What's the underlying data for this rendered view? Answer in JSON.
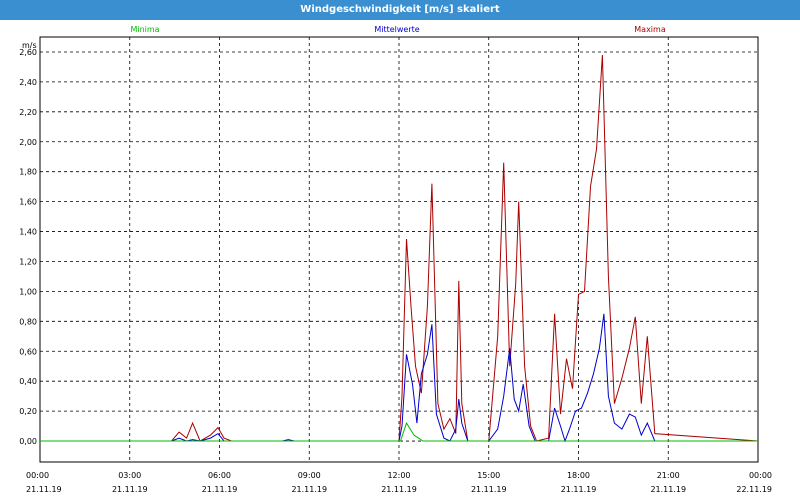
{
  "window": {
    "title": "Windgeschwindigkeit [m/s] skaliert"
  },
  "chart_data": {
    "type": "line",
    "title": "Windgeschwindigkeit [m/s] skaliert",
    "ylabel": "m/s",
    "xlabel": "",
    "ylim": [
      -0.14,
      2.7
    ],
    "xlim": [
      0,
      24
    ],
    "grid": true,
    "legend_placement": "top",
    "yticks": [
      "0,00",
      "0,20",
      "0,40",
      "0,60",
      "0,80",
      "1,00",
      "1,20",
      "1,40",
      "1,60",
      "1,80",
      "2,00",
      "2,20",
      "2,40",
      "2,60"
    ],
    "xticks": [
      {
        "time": "00:00",
        "date": "21.11.19"
      },
      {
        "time": "03:00",
        "date": "21.11.19"
      },
      {
        "time": "06:00",
        "date": "21.11.19"
      },
      {
        "time": "09:00",
        "date": "21.11.19"
      },
      {
        "time": "12:00",
        "date": "21.11.19"
      },
      {
        "time": "15:00",
        "date": "21.11.19"
      },
      {
        "time": "18:00",
        "date": "21.11.19"
      },
      {
        "time": "21:00",
        "date": "21.11.19"
      },
      {
        "time": "00:00",
        "date": "22.11.19"
      }
    ],
    "series": [
      {
        "name": "Minima",
        "color": "#00bb00",
        "x": [
          0,
          12.05,
          12.25,
          12.5,
          12.8,
          13.0,
          24
        ],
        "y": [
          0,
          0,
          0.12,
          0.04,
          0,
          0,
          0
        ]
      },
      {
        "name": "Mittelwerte",
        "color": "#0000cc",
        "x": [
          0,
          4.4,
          4.65,
          4.9,
          5.1,
          5.35,
          5.7,
          5.95,
          6.15,
          6.4,
          8.1,
          8.3,
          8.5,
          12.0,
          12.1,
          12.25,
          12.45,
          12.6,
          12.75,
          12.95,
          13.1,
          13.25,
          13.5,
          13.7,
          13.9,
          14.0,
          14.1,
          14.3,
          15.0,
          15.3,
          15.5,
          15.7,
          15.85,
          16.0,
          16.15,
          16.35,
          16.55,
          16.75,
          17.0,
          17.2,
          17.4,
          17.55,
          17.7,
          17.9,
          18.1,
          18.3,
          18.5,
          18.7,
          18.85,
          19.0,
          19.2,
          19.45,
          19.7,
          19.9,
          20.1,
          20.3,
          20.55,
          24
        ],
        "y": [
          0,
          0,
          0.02,
          0,
          0.01,
          0,
          0.02,
          0.05,
          0,
          0,
          0,
          0.01,
          0,
          0,
          0.1,
          0.58,
          0.38,
          0.12,
          0.45,
          0.58,
          0.78,
          0.18,
          0.02,
          0,
          0.08,
          0.28,
          0.12,
          0,
          0,
          0.08,
          0.3,
          0.62,
          0.28,
          0.2,
          0.38,
          0.1,
          0,
          0,
          0,
          0.22,
          0.1,
          0,
          0.08,
          0.2,
          0.22,
          0.32,
          0.45,
          0.62,
          0.85,
          0.3,
          0.12,
          0.08,
          0.18,
          0.16,
          0.04,
          0.12,
          0,
          0
        ]
      },
      {
        "name": "Maxima",
        "color": "#aa0000",
        "x": [
          0,
          4.4,
          4.65,
          4.9,
          5.1,
          5.35,
          5.7,
          5.95,
          6.15,
          6.4,
          12.0,
          12.1,
          12.25,
          12.4,
          12.55,
          12.75,
          12.95,
          13.1,
          13.3,
          13.5,
          13.7,
          13.9,
          14.0,
          14.1,
          14.3,
          15.0,
          15.3,
          15.5,
          15.7,
          15.9,
          16.0,
          16.2,
          16.4,
          16.6,
          17.0,
          17.2,
          17.4,
          17.6,
          17.8,
          18.0,
          18.2,
          18.4,
          18.6,
          18.8,
          19.0,
          19.2,
          19.45,
          19.7,
          19.9,
          20.1,
          20.3,
          20.55,
          24
        ],
        "y": [
          0,
          0,
          0.06,
          0.02,
          0.12,
          0,
          0.04,
          0.09,
          0.02,
          0,
          0,
          0.3,
          1.35,
          0.9,
          0.5,
          0.32,
          0.9,
          1.72,
          0.25,
          0.08,
          0.15,
          0.05,
          1.07,
          0.25,
          0,
          0,
          0.7,
          1.86,
          0.5,
          1.05,
          1.6,
          0.5,
          0.1,
          0,
          0.02,
          0.85,
          0.18,
          0.55,
          0.35,
          0.98,
          1.0,
          1.7,
          1.95,
          2.58,
          1.1,
          0.25,
          0.42,
          0.62,
          0.83,
          0.25,
          0.7,
          0.05,
          0
        ]
      }
    ]
  }
}
